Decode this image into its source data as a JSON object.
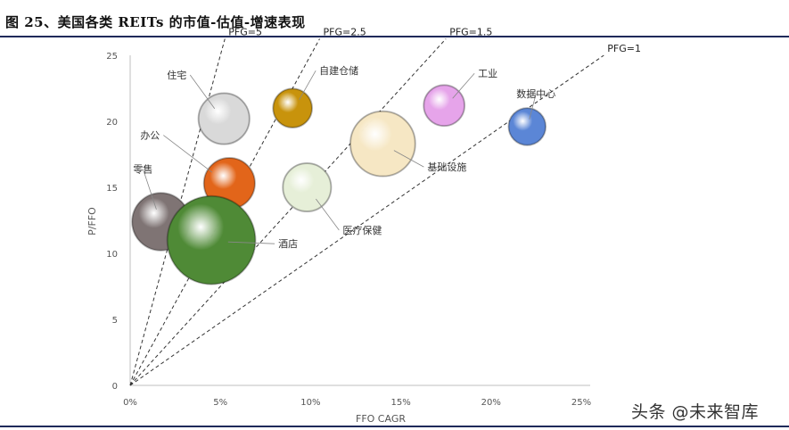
{
  "title": "图 25、美国各类 REITs 的市值-估值-增速表现",
  "watermark": "头条 @未来智库",
  "chart_data": {
    "type": "bubble",
    "xlabel": "FFO CAGR",
    "ylabel": "P/FFO",
    "xlim": [
      0,
      0.25
    ],
    "ylim": [
      0,
      25
    ],
    "x_ticks": [
      "0%",
      "5%",
      "10%",
      "15%",
      "20%",
      "25%"
    ],
    "y_ticks": [
      "0",
      "5",
      "10",
      "15",
      "20",
      "25"
    ],
    "grid": false,
    "reference_lines": [
      {
        "label": "PFG=5",
        "pfg": 5
      },
      {
        "label": "PFG=2.5",
        "pfg": 2.5
      },
      {
        "label": "PFG=1.5",
        "pfg": 1.5
      },
      {
        "label": "PFG=1",
        "pfg": 1
      }
    ],
    "series": [
      {
        "name": "住宅",
        "x": 0.052,
        "y": 20.2,
        "size": 0.55,
        "color": "#d9d9d9"
      },
      {
        "name": "自建仓储",
        "x": 0.09,
        "y": 21.0,
        "size": 0.42,
        "color": "#c8930c"
      },
      {
        "name": "工业",
        "x": 0.174,
        "y": 21.2,
        "size": 0.44,
        "color": "#e6a4ea"
      },
      {
        "name": "数据中心",
        "x": 0.22,
        "y": 19.6,
        "size": 0.4,
        "color": "#5b86d6"
      },
      {
        "name": "办公",
        "x": 0.055,
        "y": 15.3,
        "size": 0.55,
        "color": "#e2651a"
      },
      {
        "name": "基础设施",
        "x": 0.14,
        "y": 18.3,
        "size": 0.7,
        "color": "#f6e7c4"
      },
      {
        "name": "医疗保健",
        "x": 0.098,
        "y": 15.0,
        "size": 0.52,
        "color": "#e6efd8"
      },
      {
        "name": "零售",
        "x": 0.017,
        "y": 12.4,
        "size": 0.62,
        "color": "#7f7474"
      },
      {
        "name": "酒店",
        "x": 0.045,
        "y": 11.0,
        "size": 0.95,
        "color": "#4f8a36"
      }
    ]
  }
}
